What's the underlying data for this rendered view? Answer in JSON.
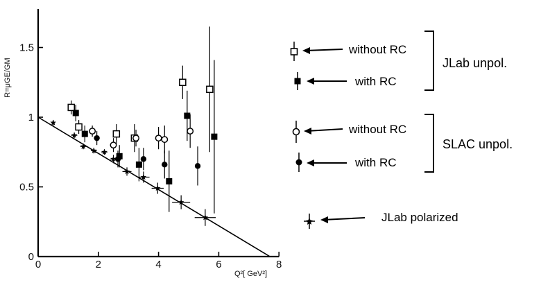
{
  "chart_data": {
    "type": "scatter",
    "xlabel": "Q²[ GeV²]",
    "ylabel": "R=μGE/GM",
    "xlim": [
      0,
      8
    ],
    "ylim": [
      0,
      1.9
    ],
    "x_ticks": [
      "0",
      "2",
      "4",
      "6",
      "8"
    ],
    "x_tick_values": [
      0,
      2,
      4,
      6,
      8
    ],
    "y_ticks": [
      "0",
      "0.5",
      "1",
      "1.5"
    ],
    "y_tick_values": [
      0,
      0.5,
      1,
      1.5
    ],
    "grid": false,
    "legend_position": "right",
    "colors": {
      "axis": "#000000",
      "marker": "#000000"
    },
    "series": [
      {
        "legend_label": "without RC",
        "group": "JLab unpol.",
        "marker": "open-square",
        "points": [
          {
            "x": 1.1,
            "y": 1.07,
            "err": 0.05
          },
          {
            "x": 1.35,
            "y": 0.93,
            "err": 0.05
          },
          {
            "x": 2.6,
            "y": 0.88,
            "err": 0.07
          },
          {
            "x": 3.2,
            "y": 0.85,
            "err": 0.1
          },
          {
            "x": 4.8,
            "y": 1.25,
            "err": 0.12
          },
          {
            "x": 5.7,
            "y": 1.2,
            "err": 0.45
          }
        ]
      },
      {
        "legend_label": "with RC",
        "group": "JLab unpol.",
        "marker": "filled-square",
        "points": [
          {
            "x": 1.25,
            "y": 1.03,
            "err": 0.06
          },
          {
            "x": 1.55,
            "y": 0.88,
            "err": 0.06
          },
          {
            "x": 2.7,
            "y": 0.72,
            "err": 0.08
          },
          {
            "x": 3.35,
            "y": 0.66,
            "err": 0.12
          },
          {
            "x": 4.35,
            "y": 0.54,
            "err": 0.22
          },
          {
            "x": 4.95,
            "y": 1.01,
            "err": 0.18
          },
          {
            "x": 5.85,
            "y": 0.86,
            "err": 0.55
          }
        ]
      },
      {
        "legend_label": "without RC",
        "group": "SLAC unpol.",
        "marker": "open-circle",
        "points": [
          {
            "x": 1.8,
            "y": 0.9,
            "err": 0.04
          },
          {
            "x": 2.5,
            "y": 0.8,
            "err": 0.05
          },
          {
            "x": 3.25,
            "y": 0.85,
            "err": 0.06
          },
          {
            "x": 4.0,
            "y": 0.85,
            "err": 0.08
          },
          {
            "x": 4.2,
            "y": 0.84,
            "err": 0.1
          },
          {
            "x": 5.05,
            "y": 0.9,
            "err": 0.12
          }
        ]
      },
      {
        "legend_label": "with RC",
        "group": "SLAC unpol.",
        "marker": "filled-circle",
        "points": [
          {
            "x": 1.95,
            "y": 0.85,
            "err": 0.05
          },
          {
            "x": 2.65,
            "y": 0.7,
            "err": 0.06
          },
          {
            "x": 3.5,
            "y": 0.7,
            "err": 0.08
          },
          {
            "x": 4.2,
            "y": 0.66,
            "err": 0.1
          },
          {
            "x": 5.3,
            "y": 0.65,
            "err": 0.14
          }
        ]
      },
      {
        "legend_label": "JLab polarized",
        "group": "",
        "marker": "star",
        "points": [
          {
            "x": 0.5,
            "y": 0.96,
            "err": 0.02,
            "xerr": 0.05
          },
          {
            "x": 1.2,
            "y": 0.87,
            "err": 0.02,
            "xerr": 0.1
          },
          {
            "x": 1.5,
            "y": 0.79,
            "err": 0.02,
            "xerr": 0.1
          },
          {
            "x": 1.85,
            "y": 0.76,
            "err": 0.02,
            "xerr": 0.1
          },
          {
            "x": 2.2,
            "y": 0.75,
            "err": 0.02,
            "xerr": 0.1
          },
          {
            "x": 2.5,
            "y": 0.7,
            "err": 0.03,
            "xerr": 0.1
          },
          {
            "x": 2.95,
            "y": 0.61,
            "err": 0.03,
            "xerr": 0.15
          },
          {
            "x": 3.5,
            "y": 0.57,
            "err": 0.04,
            "xerr": 0.2
          },
          {
            "x": 3.97,
            "y": 0.49,
            "err": 0.04,
            "xerr": 0.2
          },
          {
            "x": 4.75,
            "y": 0.39,
            "err": 0.05,
            "xerr": 0.3
          },
          {
            "x": 5.55,
            "y": 0.28,
            "err": 0.06,
            "xerr": 0.35
          }
        ]
      }
    ],
    "fit_line": {
      "x": [
        0,
        7.7
      ],
      "y": [
        1.0,
        0.0
      ]
    },
    "legend_groups": [
      "JLab unpol.",
      "SLAC unpol."
    ]
  }
}
